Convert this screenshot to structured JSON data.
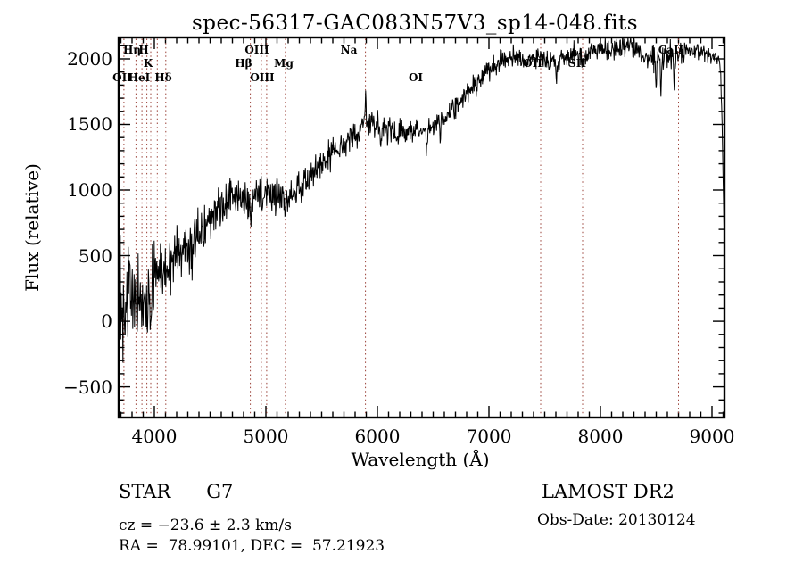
{
  "title": "spec-56317-GAC083N57V3_sp14-048.fits",
  "footer": {
    "class_label": "STAR      G7",
    "survey": "LAMOST DR2",
    "cz": "cz = −23.6 ± 2.3 km/s",
    "obs_date": "Obs-Date: 20130124",
    "radec": "RA =  78.99101, DEC =  57.21923"
  },
  "colors": {
    "spectrum": "#000000",
    "axis": "#000000",
    "line_marker": "#9a4037",
    "background": "#ffffff"
  },
  "chart_data": {
    "type": "line",
    "title": "spec-56317-GAC083N57V3_sp14-048.fits",
    "xlabel": "Wavelength (Å)",
    "ylabel": "Flux (relative)",
    "xlim": [
      3680,
      9112
    ],
    "ylim": [
      -734,
      2163
    ],
    "xticks": [
      4000,
      5000,
      6000,
      7000,
      8000,
      9000
    ],
    "yticks": [
      -500,
      0,
      500,
      1000,
      1500,
      2000
    ],
    "minor_tick_step_x": 100,
    "minor_tick_step_y": 100,
    "grid": false,
    "legend": "none",
    "noise_seed": 13,
    "spectral_lines": [
      {
        "label": "OII",
        "wavelength": 3727
      },
      {
        "label": "Hη",
        "wavelength": 3835
      },
      {
        "label": "",
        "wavelength": 3889
      },
      {
        "label": "K",
        "wavelength": 3933
      },
      {
        "label": "H",
        "wavelength": 3968
      },
      {
        "label": "HeI",
        "wavelength": 4026
      },
      {
        "label": "Hδ",
        "wavelength": 4102
      },
      {
        "label": "Hβ",
        "wavelength": 4861
      },
      {
        "label": "OIII",
        "wavelength": 4959
      },
      {
        "label": "OIII",
        "wavelength": 5007
      },
      {
        "label": "Mg",
        "wavelength": 5175
      },
      {
        "label": "Na",
        "wavelength": 5893
      },
      {
        "label": "OI",
        "wavelength": 6364
      },
      {
        "label": "OII",
        "wavelength": 7464
      },
      {
        "label": "SII",
        "wavelength": 7840
      },
      {
        "label": "CaII",
        "wavelength": 8700
      }
    ],
    "line_labels": [
      {
        "text": "Hη",
        "x": 148,
        "row": 0
      },
      {
        "text": "H",
        "x": 161,
        "row": 0
      },
      {
        "text": "OIII",
        "x": 288,
        "row": 0
      },
      {
        "text": "Na",
        "x": 391,
        "row": 0
      },
      {
        "text": "CaII",
        "x": 752,
        "row": 0
      },
      {
        "text": "K",
        "x": 166,
        "row": 1
      },
      {
        "text": "Hβ",
        "x": 273,
        "row": 1
      },
      {
        "text": "Mg",
        "x": 318,
        "row": 1
      },
      {
        "text": "OII",
        "x": 597,
        "row": 1
      },
      {
        "text": "SII",
        "x": 647,
        "row": 1
      },
      {
        "text": "OII",
        "x": 137,
        "row": 2
      },
      {
        "text": "HeI",
        "x": 156,
        "row": 2
      },
      {
        "text": "Hδ",
        "x": 183,
        "row": 2
      },
      {
        "text": "OIII",
        "x": 294,
        "row": 2
      },
      {
        "text": "OI",
        "x": 466,
        "row": 2
      }
    ],
    "baseline": [
      [
        3680,
        0
      ],
      [
        3695,
        150
      ],
      [
        3715,
        250
      ],
      [
        3745,
        230
      ],
      [
        3780,
        220
      ],
      [
        3840,
        160
      ],
      [
        3880,
        120
      ],
      [
        3920,
        140
      ],
      [
        3960,
        200
      ],
      [
        4000,
        330
      ],
      [
        4050,
        420
      ],
      [
        4100,
        400
      ],
      [
        4150,
        470
      ],
      [
        4250,
        540
      ],
      [
        4350,
        620
      ],
      [
        4450,
        710
      ],
      [
        4550,
        810
      ],
      [
        4650,
        920
      ],
      [
        4700,
        960
      ],
      [
        4750,
        940
      ],
      [
        4800,
        930
      ],
      [
        4860,
        900
      ],
      [
        4920,
        950
      ],
      [
        5000,
        990
      ],
      [
        5080,
        970
      ],
      [
        5170,
        940
      ],
      [
        5250,
        990
      ],
      [
        5350,
        1060
      ],
      [
        5450,
        1150
      ],
      [
        5550,
        1250
      ],
      [
        5650,
        1330
      ],
      [
        5750,
        1400
      ],
      [
        5830,
        1450
      ],
      [
        5880,
        1480
      ],
      [
        5900,
        1500
      ],
      [
        5950,
        1510
      ],
      [
        6050,
        1480
      ],
      [
        6150,
        1450
      ],
      [
        6250,
        1430
      ],
      [
        6350,
        1440
      ],
      [
        6450,
        1460
      ],
      [
        6550,
        1520
      ],
      [
        6650,
        1600
      ],
      [
        6750,
        1690
      ],
      [
        6850,
        1790
      ],
      [
        6950,
        1880
      ],
      [
        7050,
        1950
      ],
      [
        7150,
        2000
      ],
      [
        7250,
        2010
      ],
      [
        7350,
        2000
      ],
      [
        7450,
        2020
      ],
      [
        7550,
        1970
      ],
      [
        7650,
        2000
      ],
      [
        7750,
        2030
      ],
      [
        7850,
        2010
      ],
      [
        7950,
        2060
      ],
      [
        8050,
        2070
      ],
      [
        8150,
        2090
      ],
      [
        8250,
        2080
      ],
      [
        8350,
        2060
      ],
      [
        8450,
        2010
      ],
      [
        8550,
        2030
      ],
      [
        8650,
        2030
      ],
      [
        8750,
        2060
      ],
      [
        8850,
        2050
      ],
      [
        8950,
        2040
      ],
      [
        9050,
        2010
      ],
      [
        9075,
        1950
      ],
      [
        9090,
        1500
      ],
      [
        9100,
        1000
      ],
      [
        9112,
        620
      ]
    ],
    "noise_amplitude": [
      [
        3680,
        800
      ],
      [
        3700,
        650
      ],
      [
        3730,
        480
      ],
      [
        3770,
        350
      ],
      [
        3810,
        300
      ],
      [
        3900,
        260
      ],
      [
        4000,
        260
      ],
      [
        4200,
        210
      ],
      [
        4400,
        190
      ],
      [
        4600,
        170
      ],
      [
        4800,
        150
      ],
      [
        5000,
        140
      ],
      [
        5200,
        130
      ],
      [
        5400,
        120
      ],
      [
        5600,
        115
      ],
      [
        5800,
        110
      ],
      [
        6000,
        100
      ],
      [
        6300,
        95
      ],
      [
        6600,
        90
      ],
      [
        7000,
        85
      ],
      [
        7400,
        80
      ],
      [
        7600,
        95
      ],
      [
        7800,
        90
      ],
      [
        8000,
        85
      ],
      [
        8300,
        90
      ],
      [
        8500,
        130
      ],
      [
        8700,
        110
      ],
      [
        8900,
        85
      ],
      [
        9050,
        70
      ],
      [
        9112,
        60
      ]
    ],
    "features": [
      {
        "wavelength": 3835,
        "amplitude": -120,
        "width": 5
      },
      {
        "wavelength": 3889,
        "amplitude": -130,
        "width": 5
      },
      {
        "wavelength": 3934,
        "amplitude": -160,
        "width": 6
      },
      {
        "wavelength": 3968,
        "amplitude": -150,
        "width": 6
      },
      {
        "wavelength": 4102,
        "amplitude": -130,
        "width": 7
      },
      {
        "wavelength": 4340,
        "amplitude": -100,
        "width": 7
      },
      {
        "wavelength": 4861,
        "amplitude": -110,
        "width": 7
      },
      {
        "wavelength": 5175,
        "amplitude": -100,
        "width": 10
      },
      {
        "wavelength": 5893,
        "amplitude": 290,
        "width": 6
      },
      {
        "wavelength": 6030,
        "amplitude": -190,
        "width": 7
      },
      {
        "wavelength": 6090,
        "amplitude": -150,
        "width": 5
      },
      {
        "wavelength": 6440,
        "amplitude": -150,
        "width": 5
      },
      {
        "wavelength": 6563,
        "amplitude": -180,
        "width": 7
      },
      {
        "wavelength": 7610,
        "amplitude": -110,
        "width": 12
      },
      {
        "wavelength": 8498,
        "amplitude": -240,
        "width": 7
      },
      {
        "wavelength": 8542,
        "amplitude": -310,
        "width": 7
      },
      {
        "wavelength": 8662,
        "amplitude": -290,
        "width": 7
      }
    ]
  }
}
